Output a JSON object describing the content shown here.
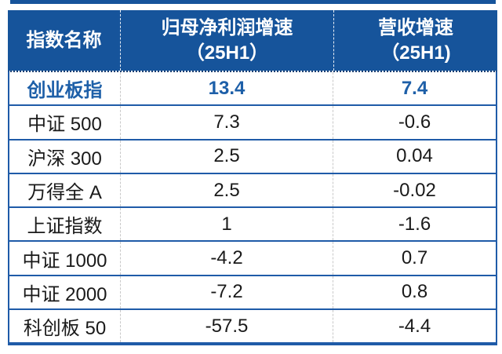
{
  "colors": {
    "header_bg": "#16549B",
    "border_blue": "#1F5BA8",
    "highlight_text": "#1D5FA8",
    "body_text": "#1A1A1A",
    "header_text": "#FFFFFF",
    "dotted_separator": "#C9C9C9"
  },
  "table": {
    "header": {
      "col1": "指数名称",
      "col2_line1": "归母净利润增速",
      "col2_line2": "（25H1）",
      "col3_line1": "营收增速",
      "col3_line2": "（25H1)"
    },
    "rows": [
      {
        "name": "创业板指",
        "profit_growth": "13.4",
        "revenue_growth": "7.4",
        "highlight": true
      },
      {
        "name": "中证 500",
        "profit_growth": "7.3",
        "revenue_growth": "-0.6",
        "highlight": false
      },
      {
        "name": "沪深 300",
        "profit_growth": "2.5",
        "revenue_growth": "0.04",
        "highlight": false
      },
      {
        "name": "万得全 A",
        "profit_growth": "2.5",
        "revenue_growth": "-0.02",
        "highlight": false
      },
      {
        "name": "上证指数",
        "profit_growth": "1",
        "revenue_growth": "-1.6",
        "highlight": false
      },
      {
        "name": "中证 1000",
        "profit_growth": "-4.2",
        "revenue_growth": "0.7",
        "highlight": false
      },
      {
        "name": "中证 2000",
        "profit_growth": "-7.2",
        "revenue_growth": "0.8",
        "highlight": false
      },
      {
        "name": "科创板 50",
        "profit_growth": "-57.5",
        "revenue_growth": "-4.4",
        "highlight": false
      }
    ]
  },
  "chart_data": {
    "type": "table",
    "title": "",
    "columns": [
      "指数名称",
      "归母净利润增速（25H1）",
      "营收增速（25H1)"
    ],
    "rows": [
      [
        "创业板指",
        13.4,
        7.4
      ],
      [
        "中证 500",
        7.3,
        -0.6
      ],
      [
        "沪深 300",
        2.5,
        0.04
      ],
      [
        "万得全 A",
        2.5,
        -0.02
      ],
      [
        "上证指数",
        1,
        -1.6
      ],
      [
        "中证 1000",
        -4.2,
        0.7
      ],
      [
        "中证 2000",
        -7.2,
        0.8
      ],
      [
        "科创板 50",
        -57.5,
        -4.4
      ]
    ],
    "highlighted_row": "创业板指"
  }
}
